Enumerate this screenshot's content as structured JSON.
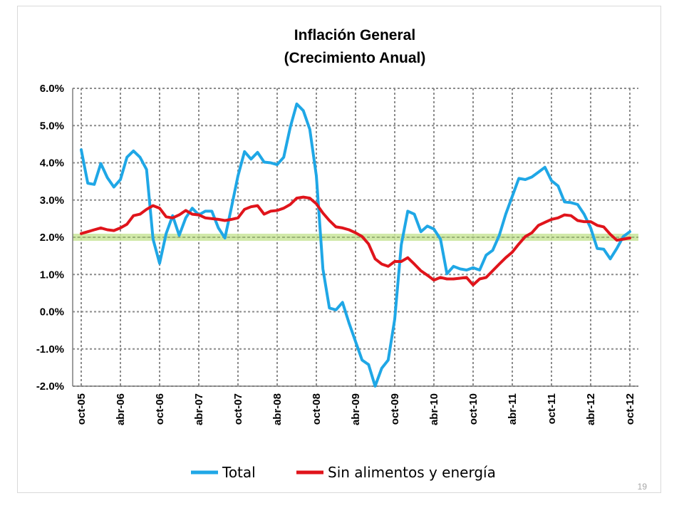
{
  "slide": {
    "number": "19"
  },
  "chart_data": {
    "type": "line",
    "title": "Inflación General",
    "subtitle": "(Crecimiento Anual)",
    "xlabel": "",
    "ylabel": "",
    "ylim": [
      -2.0,
      6.0
    ],
    "y_ticks": [
      "6.0%",
      "5.0%",
      "4.0%",
      "3.0%",
      "2.0%",
      "1.0%",
      "0.0%",
      "-1.0%",
      "-2.0%"
    ],
    "x_ticks": [
      "oct-05",
      "abr-06",
      "oct-06",
      "abr-07",
      "oct-07",
      "abr-08",
      "oct-08",
      "abr-09",
      "oct-09",
      "abr-10",
      "oct-10",
      "abr-11",
      "oct-11",
      "abr-12",
      "oct-12"
    ],
    "x_start": "oct-05",
    "x_end": "oct-12",
    "grid": true,
    "target_band": {
      "value": 2.0,
      "color": "#c9e59a"
    },
    "legend_position": "bottom",
    "series": [
      {
        "name": "Total",
        "color": "#1fa7e6",
        "values": [
          4.35,
          3.45,
          3.42,
          3.98,
          3.6,
          3.35,
          3.55,
          4.15,
          4.32,
          4.15,
          3.82,
          1.95,
          1.3,
          2.1,
          2.58,
          2.05,
          2.52,
          2.78,
          2.6,
          2.7,
          2.7,
          2.25,
          1.98,
          2.8,
          3.65,
          4.3,
          4.1,
          4.28,
          4.02,
          4.0,
          3.95,
          4.15,
          4.95,
          5.58,
          5.4,
          4.9,
          3.65,
          1.15,
          0.1,
          0.05,
          0.25,
          -0.3,
          -0.8,
          -1.3,
          -1.42,
          -2.1,
          -1.52,
          -1.3,
          -0.2,
          1.8,
          2.7,
          2.62,
          2.15,
          2.3,
          2.22,
          1.95,
          1.02,
          1.22,
          1.15,
          1.12,
          1.18,
          1.12,
          1.52,
          1.65,
          2.05,
          2.62,
          3.1,
          3.58,
          3.55,
          3.62,
          3.75,
          3.88,
          3.52,
          3.38,
          2.95,
          2.93,
          2.88,
          2.62,
          2.25,
          1.7,
          1.68,
          1.42,
          1.7,
          2.02,
          2.15
        ]
      },
      {
        "name": "Sin alimentos y energía",
        "color": "#e0141b",
        "values": [
          2.1,
          2.15,
          2.2,
          2.25,
          2.2,
          2.18,
          2.25,
          2.35,
          2.58,
          2.62,
          2.75,
          2.85,
          2.78,
          2.55,
          2.52,
          2.6,
          2.72,
          2.62,
          2.6,
          2.52,
          2.5,
          2.48,
          2.45,
          2.48,
          2.52,
          2.75,
          2.82,
          2.85,
          2.62,
          2.7,
          2.72,
          2.78,
          2.88,
          3.05,
          3.08,
          3.05,
          2.9,
          2.65,
          2.45,
          2.28,
          2.25,
          2.2,
          2.12,
          2.02,
          1.82,
          1.42,
          1.28,
          1.22,
          1.35,
          1.35,
          1.45,
          1.28,
          1.1,
          0.98,
          0.85,
          0.92,
          0.88,
          0.88,
          0.9,
          0.92,
          0.72,
          0.88,
          0.92,
          1.1,
          1.28,
          1.45,
          1.6,
          1.82,
          2.02,
          2.12,
          2.32,
          2.4,
          2.48,
          2.52,
          2.6,
          2.58,
          2.45,
          2.42,
          2.42,
          2.32,
          2.28,
          2.08,
          1.92,
          1.95,
          1.98
        ]
      }
    ]
  }
}
